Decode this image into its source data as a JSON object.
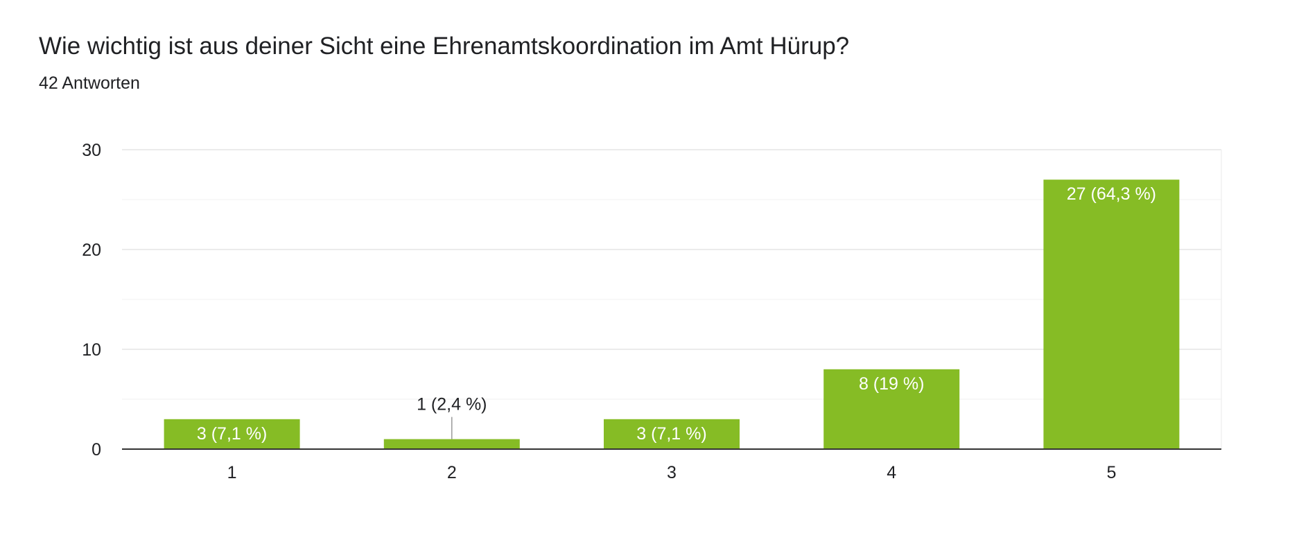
{
  "header": {
    "question": "Wie wichtig ist aus deiner Sicht eine Ehrenamtskoordination im Amt Hürup?",
    "responses": "42 Antworten"
  },
  "colors": {
    "bar": "#86bc25",
    "grid": "#ebebeb",
    "axis": "#333333",
    "text": "#202124",
    "inside_label": "#ffffff"
  },
  "chart_data": {
    "type": "bar",
    "title": "Wie wichtig ist aus deiner Sicht eine Ehrenamtskoordination im Amt Hürup?",
    "subtitle": "42 Antworten",
    "categories": [
      "1",
      "2",
      "3",
      "4",
      "5"
    ],
    "values": [
      3,
      1,
      3,
      8,
      27
    ],
    "labels": [
      "3 (7,1 %)",
      "1 (2,4 %)",
      "3 (7,1 %)",
      "8 (19 %)",
      "27 (64,3 %)"
    ],
    "y_ticks": [
      "0",
      "10",
      "20",
      "30"
    ],
    "ylim": [
      0,
      30
    ],
    "xlabel": "",
    "ylabel": "",
    "grid": true,
    "legend": "none"
  }
}
